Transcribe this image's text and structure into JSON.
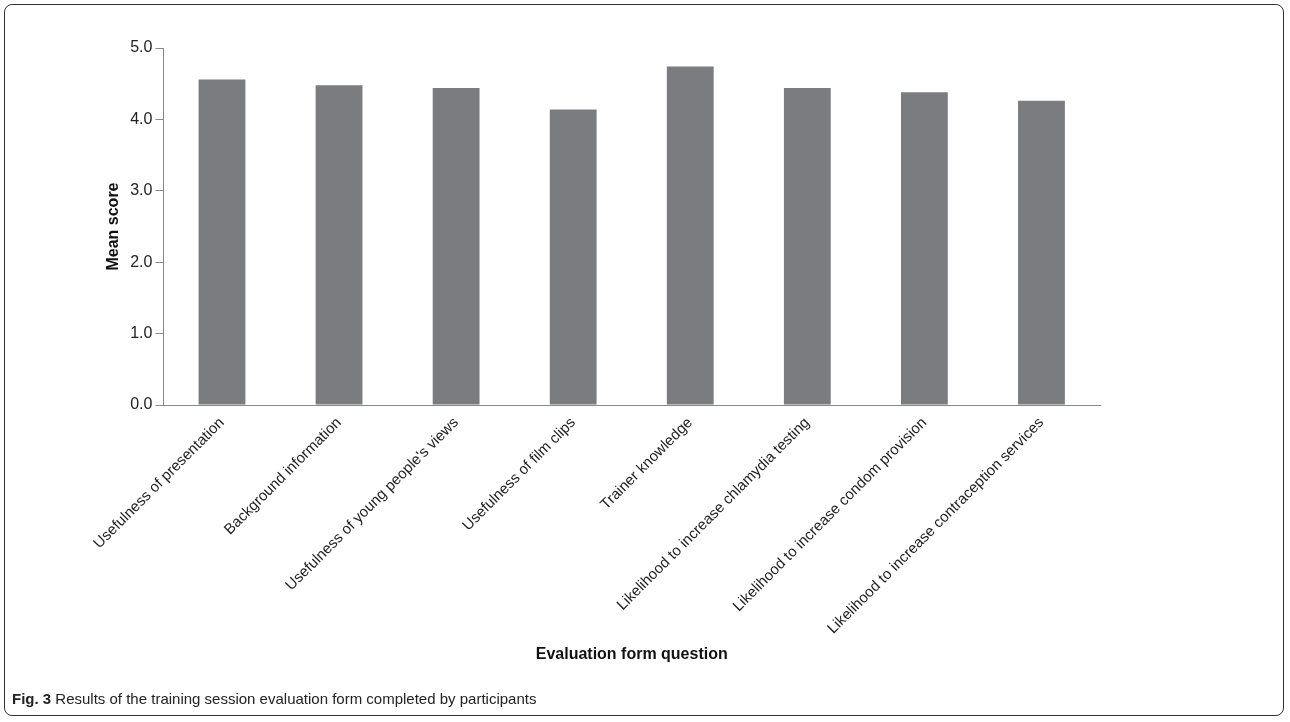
{
  "chart_data": {
    "type": "bar",
    "xlabel": "Evaluation form question",
    "ylabel": "Mean score",
    "categories": [
      "Usefulness of presentation",
      "Background information",
      "Usefulness of young people's views",
      "Usefulness of film clips",
      "Trainer knowledge",
      "Likelihood to increase chlamydia testing",
      "Likelihood to increase condom provision",
      "Likelihood to increase contraception services"
    ],
    "values": [
      4.56,
      4.48,
      4.44,
      4.14,
      4.74,
      4.44,
      4.38,
      4.26
    ],
    "color": "#7b7c80",
    "ylim": [
      0,
      5
    ],
    "yticks": [
      {
        "value": 0,
        "label": "0.0"
      },
      {
        "value": 1,
        "label": "1.0"
      },
      {
        "value": 2,
        "label": "2.0"
      },
      {
        "value": 3,
        "label": "3.0"
      },
      {
        "value": 4,
        "label": "4.0"
      },
      {
        "value": 5,
        "label": "5.0"
      }
    ],
    "grid": false,
    "legend": false,
    "annotations": [
      "Fig. 3 Results of the training session evaluation form completed by participants"
    ]
  }
}
